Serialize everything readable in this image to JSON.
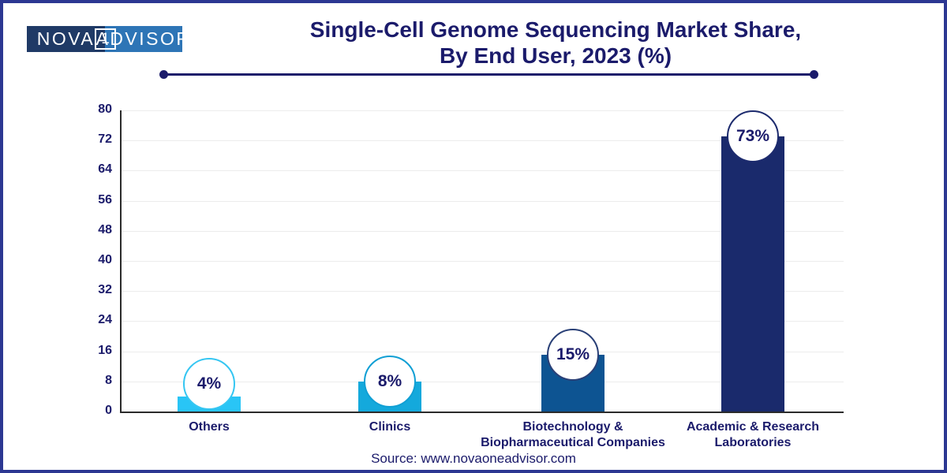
{
  "logo": {
    "text_left": "NOVA",
    "badge": "1",
    "text_right": "ADVISOR"
  },
  "header": {
    "title_line1": "Single-Cell Genome Sequencing Market Share,",
    "title_line2": "By End User, 2023 (%)"
  },
  "footer": {
    "source": "Source: www.novaoneadvisor.com"
  },
  "colors": {
    "frame_border": "#2c3792",
    "navy_text": "#1b1b6b",
    "logo_dark": "#1f3a66",
    "logo_light": "#2e75b6",
    "axis_line": "#2b2b2b",
    "gridline": "#ececec",
    "circle_fill": "#ffffff"
  },
  "chart_data": {
    "type": "bar",
    "title": "Single-Cell Genome Sequencing Market Share, By End User, 2023 (%)",
    "categories": [
      "Others",
      "Clinics",
      "Biotechnology & Biopharmaceutical Companies",
      "Academic & Research Laboratories"
    ],
    "values": [
      4,
      8,
      15,
      73
    ],
    "value_labels": [
      "4%",
      "8%",
      "15%",
      "73%"
    ],
    "bar_colors": [
      "#29c5f6",
      "#14a9dc",
      "#0d5492",
      "#1a2a6c"
    ],
    "circle_border_colors": [
      "#35c6f2",
      "#109fd4",
      "#2a4077",
      "#1d2b6e"
    ],
    "xlabel": "",
    "ylabel": "",
    "ylim": [
      0,
      80
    ],
    "ytick_step": 8,
    "yticks": [
      0,
      8,
      16,
      24,
      32,
      40,
      48,
      56,
      64,
      72,
      80
    ],
    "grid": true,
    "legend": "none"
  }
}
